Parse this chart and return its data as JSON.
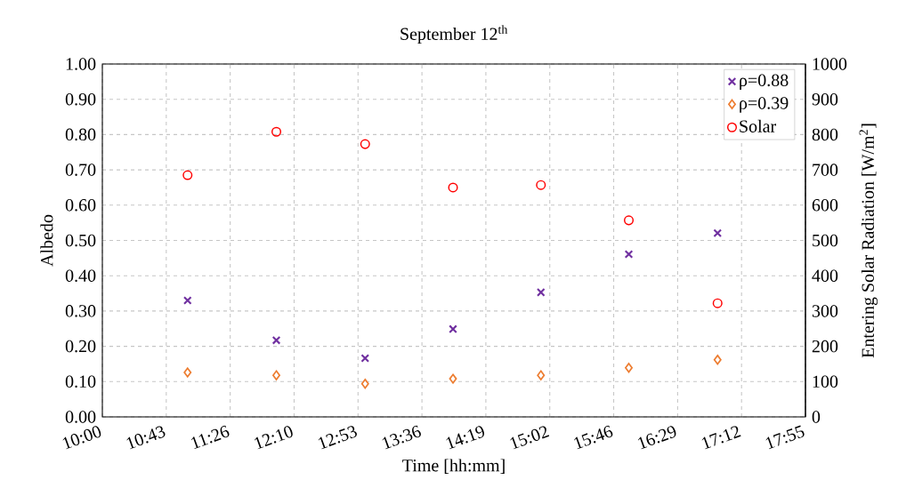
{
  "chart_data": {
    "type": "scatter",
    "title": "September 12$^{th}$",
    "xlabel": "Time [hh:mm]",
    "ylabel": "Albedo",
    "y2label": "Entering Solar Radiation [W/m$^{2}$]",
    "x": [
      10.96,
      11.96,
      12.96,
      13.95,
      14.94,
      15.93,
      16.93
    ],
    "series": [
      {
        "name": "ρ=0.88",
        "color": "#7030a0",
        "marker": "cross",
        "values": [
          0.33,
          0.217,
          0.166,
          0.249,
          0.353,
          0.461,
          0.521
        ]
      },
      {
        "name": "ρ=0.39",
        "color": "#ed7d31",
        "marker": "diamond",
        "values": [
          0.126,
          0.118,
          0.094,
          0.108,
          0.118,
          0.139,
          0.162
        ]
      },
      {
        "name": "Solar",
        "color": "#ff0000",
        "marker": "circle",
        "axis": "y2",
        "values": [
          685,
          808,
          773,
          650,
          657,
          557,
          322
        ]
      }
    ],
    "xlim": [
      10,
      17.92
    ],
    "xticks": [
      {
        "value": 10,
        "label": "10:00"
      },
      {
        "value": 10.72,
        "label": "10:43"
      },
      {
        "value": 11.44,
        "label": "11:26"
      },
      {
        "value": 12.16,
        "label": "12:10"
      },
      {
        "value": 12.88,
        "label": "12:53"
      },
      {
        "value": 13.6,
        "label": "13:36"
      },
      {
        "value": 14.32,
        "label": "14:19"
      },
      {
        "value": 15.04,
        "label": "15:02"
      },
      {
        "value": 15.76,
        "label": "15:46"
      },
      {
        "value": 16.48,
        "label": "16:29"
      },
      {
        "value": 17.2,
        "label": "17:12"
      },
      {
        "value": 17.92,
        "label": "17:55"
      }
    ],
    "ylim": [
      0,
      1
    ],
    "yticks": [
      {
        "value": 0,
        "label": "0.00"
      },
      {
        "value": 0.1,
        "label": "0.10"
      },
      {
        "value": 0.2,
        "label": "0.20"
      },
      {
        "value": 0.3,
        "label": "0.30"
      },
      {
        "value": 0.4,
        "label": "0.40"
      },
      {
        "value": 0.5,
        "label": "0.50"
      },
      {
        "value": 0.6,
        "label": "0.60"
      },
      {
        "value": 0.7,
        "label": "0.70"
      },
      {
        "value": 0.8,
        "label": "0.80"
      },
      {
        "value": 0.9,
        "label": "0.90"
      },
      {
        "value": 1,
        "label": "1.00"
      }
    ],
    "y2lim": [
      0,
      1000
    ],
    "y2ticks": [
      0,
      100,
      200,
      300,
      400,
      500,
      600,
      700,
      800,
      900,
      1000
    ],
    "grid": true,
    "legend": "top right"
  }
}
